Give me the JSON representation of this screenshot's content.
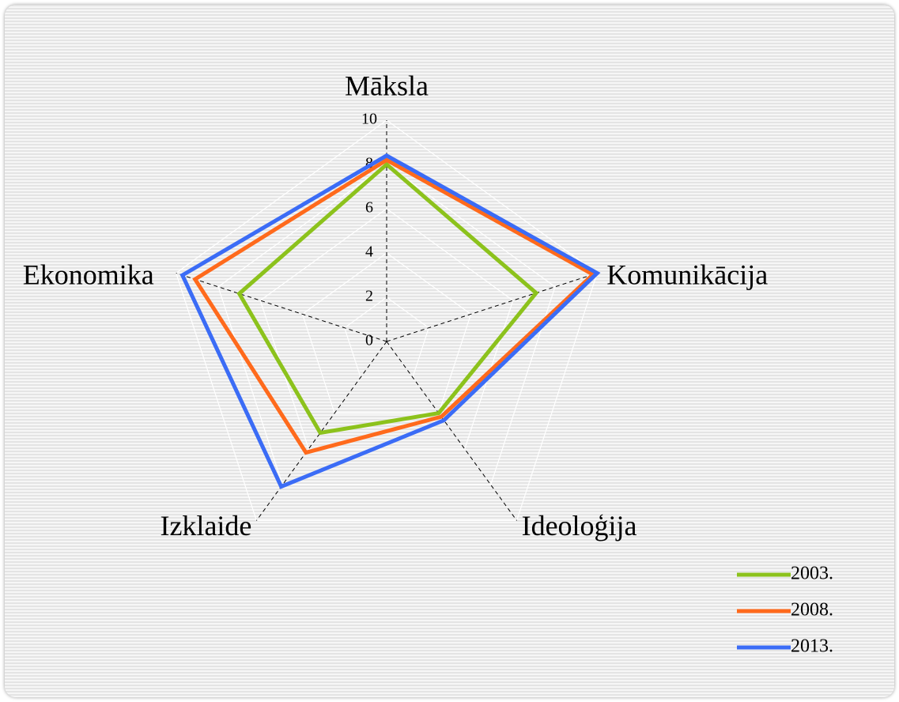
{
  "chart_data": {
    "type": "radar",
    "categories": [
      "Māksla",
      "Komunikācija",
      "Ideoloģija",
      "Izklaide",
      "Ekonomika"
    ],
    "series": [
      {
        "name": "2003.",
        "color": "#8cc21c",
        "values": [
          8.0,
          7.1,
          4.0,
          5.1,
          7.0
        ]
      },
      {
        "name": "2008.",
        "color": "#ff6a1c",
        "values": [
          8.2,
          9.8,
          4.2,
          6.2,
          9.1
        ]
      },
      {
        "name": "2013.",
        "color": "#3b6cf6",
        "values": [
          8.4,
          10.0,
          4.4,
          8.1,
          9.7
        ]
      }
    ],
    "ylim": [
      0,
      10
    ],
    "yticks": [
      0,
      2,
      4,
      6,
      8,
      10
    ],
    "grid": true,
    "legend": "bottom-right"
  }
}
